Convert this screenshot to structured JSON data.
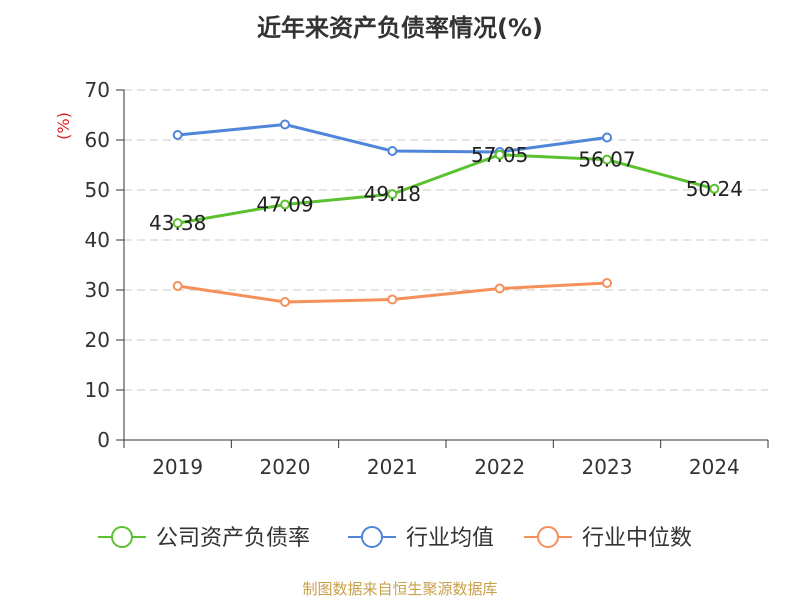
{
  "chart_data": {
    "type": "line",
    "title": "近年来资产负债率情况(%)",
    "ylabel": "(%)",
    "categories": [
      "2019",
      "2020",
      "2021",
      "2022",
      "2023",
      "2024"
    ],
    "ylim": [
      0,
      70
    ],
    "yticks": [
      0,
      10,
      20,
      30,
      40,
      50,
      60,
      70
    ],
    "grid": true,
    "legend_position": "bottom",
    "series": [
      {
        "name": "公司资产负债率",
        "color": "#5cc12e",
        "values": [
          43.38,
          47.09,
          49.18,
          57.05,
          56.07,
          50.24
        ],
        "labels": [
          "43.38",
          "47.09",
          "49.18",
          "57.05",
          "56.07",
          "50.24"
        ]
      },
      {
        "name": "行业均值",
        "color": "#4f86d9",
        "values": [
          61.0,
          63.1,
          57.8,
          57.6,
          60.5,
          null
        ]
      },
      {
        "name": "行业中位数",
        "color": "#f5905a",
        "values": [
          30.8,
          27.6,
          28.1,
          30.3,
          31.4,
          null
        ]
      }
    ],
    "source": "制图数据来自恒生聚源数据库"
  }
}
